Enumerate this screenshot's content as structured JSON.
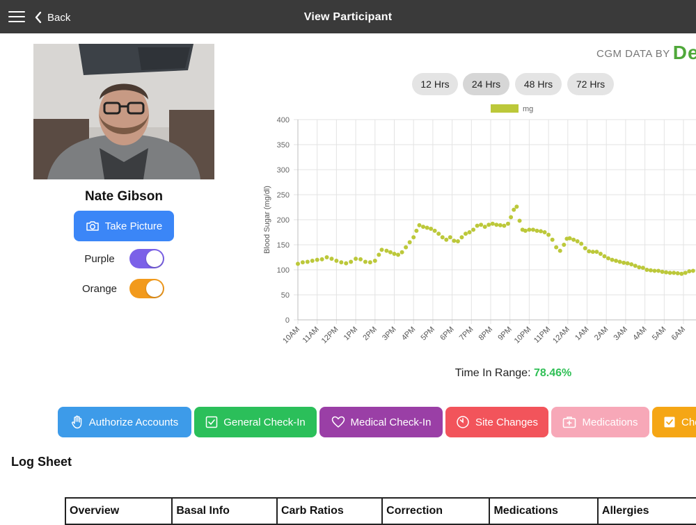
{
  "header": {
    "title": "View Participant",
    "back_label": "Back",
    "menu_icon": "hamburger-menu-icon",
    "back_icon": "chevron-left-icon"
  },
  "participant": {
    "name": "Nate Gibson",
    "take_picture_label": "Take Picture"
  },
  "toggles": [
    {
      "label": "Purple",
      "on": true,
      "color": "#7b61e8"
    },
    {
      "label": "Orange",
      "on": true,
      "color": "#f29a1c"
    }
  ],
  "cgm": {
    "brand_prefix": "CGM DATA BY",
    "brand_logo": "De"
  },
  "ranges": [
    {
      "label": "12 Hrs",
      "active": false
    },
    {
      "label": "24 Hrs",
      "active": true
    },
    {
      "label": "48 Hrs",
      "active": false
    },
    {
      "label": "72 Hrs",
      "active": false
    }
  ],
  "time_in_range": {
    "label": "Time In Range:",
    "value": "78.46%"
  },
  "actions": [
    {
      "label": "Authorize Accounts",
      "icon": "hand-icon",
      "color": "#3d9be9"
    },
    {
      "label": "General Check-In",
      "icon": "checkbox-icon",
      "color": "#2bbf5a"
    },
    {
      "label": "Medical Check-In",
      "icon": "heart-icon",
      "color": "#9a3fa6"
    },
    {
      "label": "Site Changes",
      "icon": "timer-icon",
      "color": "#f2545b"
    },
    {
      "label": "Medications",
      "icon": "medical-kit-icon",
      "color": "#f7a8b8"
    },
    {
      "label": "Che",
      "icon": "checkbox-icon",
      "color": "#f5a615"
    }
  ],
  "log_sheet": {
    "title": "Log Sheet",
    "columns": [
      "Overview",
      "Basal Info",
      "Carb Ratios",
      "Correction",
      "Medications",
      "Allergies"
    ]
  },
  "chart_data": {
    "type": "scatter",
    "title": "",
    "xlabel": "",
    "ylabel": "Blood Sugar (mg/dl)",
    "ylim": [
      0,
      400
    ],
    "yticks": [
      0,
      50,
      100,
      150,
      200,
      250,
      300,
      350,
      400
    ],
    "xticks": [
      "10AM",
      "11AM",
      "12PM",
      "1PM",
      "2PM",
      "3PM",
      "4PM",
      "5PM",
      "6PM",
      "7PM",
      "8PM",
      "9PM",
      "10PM",
      "11PM",
      "12AM",
      "1AM",
      "2AM",
      "3AM",
      "4AM",
      "5AM",
      "6AM"
    ],
    "grid": true,
    "legend": {
      "position": "top",
      "entries": [
        "mg"
      ]
    },
    "series": [
      {
        "name": "mg",
        "color": "#bcc83a",
        "points": [
          [
            0.0,
            112
          ],
          [
            0.25,
            115
          ],
          [
            0.5,
            116
          ],
          [
            0.75,
            118
          ],
          [
            1.0,
            120
          ],
          [
            1.25,
            121
          ],
          [
            1.5,
            125
          ],
          [
            1.75,
            122
          ],
          [
            2.0,
            118
          ],
          [
            2.25,
            115
          ],
          [
            2.5,
            113
          ],
          [
            2.75,
            116
          ],
          [
            3.0,
            122
          ],
          [
            3.25,
            121
          ],
          [
            3.5,
            116
          ],
          [
            3.75,
            115
          ],
          [
            4.0,
            118
          ],
          [
            4.2,
            130
          ],
          [
            4.35,
            140
          ],
          [
            4.6,
            138
          ],
          [
            4.8,
            135
          ],
          [
            5.0,
            132
          ],
          [
            5.2,
            130
          ],
          [
            5.4,
            135
          ],
          [
            5.6,
            145
          ],
          [
            5.8,
            155
          ],
          [
            6.0,
            165
          ],
          [
            6.15,
            178
          ],
          [
            6.3,
            189
          ],
          [
            6.5,
            186
          ],
          [
            6.7,
            184
          ],
          [
            6.9,
            182
          ],
          [
            7.1,
            178
          ],
          [
            7.3,
            172
          ],
          [
            7.5,
            165
          ],
          [
            7.7,
            160
          ],
          [
            7.9,
            165
          ],
          [
            8.1,
            158
          ],
          [
            8.3,
            157
          ],
          [
            8.5,
            165
          ],
          [
            8.7,
            172
          ],
          [
            8.9,
            175
          ],
          [
            9.1,
            180
          ],
          [
            9.3,
            188
          ],
          [
            9.5,
            190
          ],
          [
            9.7,
            186
          ],
          [
            9.9,
            190
          ],
          [
            10.1,
            192
          ],
          [
            10.3,
            190
          ],
          [
            10.5,
            189
          ],
          [
            10.7,
            188
          ],
          [
            10.9,
            192
          ],
          [
            11.05,
            205
          ],
          [
            11.2,
            220
          ],
          [
            11.35,
            226
          ],
          [
            11.5,
            198
          ],
          [
            11.65,
            180
          ],
          [
            11.8,
            178
          ],
          [
            12.0,
            180
          ],
          [
            12.2,
            180
          ],
          [
            12.4,
            178
          ],
          [
            12.6,
            177
          ],
          [
            12.8,
            175
          ],
          [
            13.0,
            170
          ],
          [
            13.2,
            160
          ],
          [
            13.4,
            145
          ],
          [
            13.6,
            138
          ],
          [
            13.8,
            150
          ],
          [
            13.95,
            162
          ],
          [
            14.1,
            163
          ],
          [
            14.3,
            160
          ],
          [
            14.5,
            157
          ],
          [
            14.7,
            152
          ],
          [
            14.9,
            143
          ],
          [
            15.1,
            137
          ],
          [
            15.3,
            136
          ],
          [
            15.5,
            136
          ],
          [
            15.7,
            132
          ],
          [
            15.9,
            127
          ],
          [
            16.1,
            123
          ],
          [
            16.3,
            120
          ],
          [
            16.5,
            118
          ],
          [
            16.7,
            116
          ],
          [
            16.9,
            114
          ],
          [
            17.1,
            113
          ],
          [
            17.3,
            111
          ],
          [
            17.5,
            108
          ],
          [
            17.7,
            105
          ],
          [
            17.9,
            104
          ],
          [
            18.1,
            100
          ],
          [
            18.3,
            99
          ],
          [
            18.5,
            98
          ],
          [
            18.7,
            98
          ],
          [
            18.9,
            96
          ],
          [
            19.1,
            95
          ],
          [
            19.3,
            94
          ],
          [
            19.5,
            94
          ],
          [
            19.7,
            93
          ],
          [
            19.9,
            92
          ],
          [
            20.1,
            94
          ],
          [
            20.3,
            97
          ],
          [
            20.5,
            98
          ],
          [
            20.7,
            100
          ],
          [
            20.9,
            103
          ]
        ]
      }
    ]
  }
}
